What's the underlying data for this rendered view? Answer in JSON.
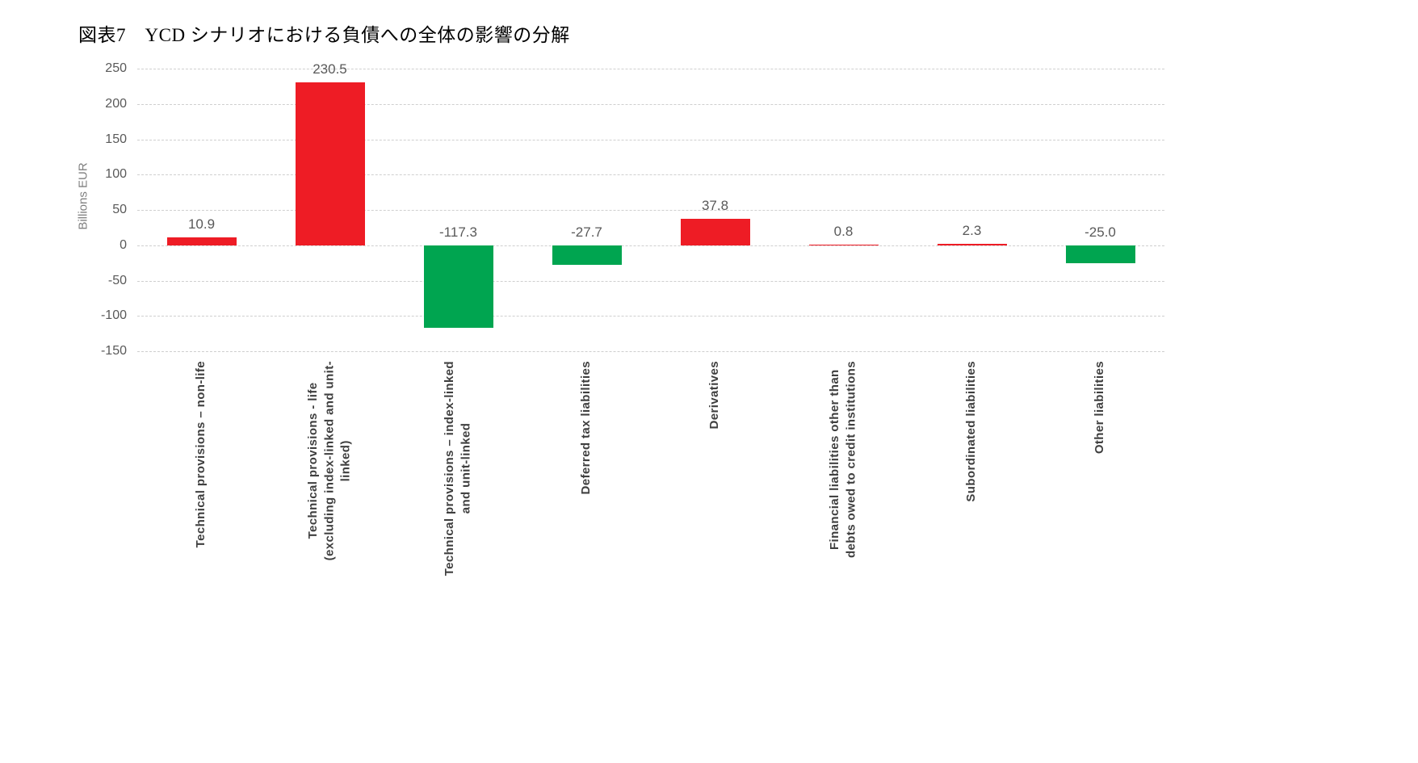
{
  "chart_data": {
    "type": "bar",
    "title": "図表7　YCD シナリオにおける負債への全体の影響の分解",
    "ylabel": "Billions EUR",
    "xlabel": "",
    "ylim": [
      -150,
      250
    ],
    "ytick_step": 50,
    "grid": true,
    "legend_position": "none",
    "categories": [
      "Technical provisions – non-life",
      "Technical provisions - life\n(excluding index-linked and unit-\nlinked)",
      "Technical provisions – index-linked\nand unit-linked",
      "Deferred tax liabilities",
      "Derivatives",
      "Financial liabilities other than\ndebts owed to credit institutions",
      "Subordinated liabilities",
      "Other liabilities"
    ],
    "values": [
      10.9,
      230.5,
      -117.3,
      -27.7,
      37.8,
      0.8,
      2.3,
      -25.0
    ],
    "value_labels": [
      "10.9",
      "230.5",
      "-117.3",
      "-27.7",
      "37.8",
      "0.8",
      "2.3",
      "-25.0"
    ],
    "positive_color": "#ee1c25",
    "negative_color": "#00a550"
  }
}
